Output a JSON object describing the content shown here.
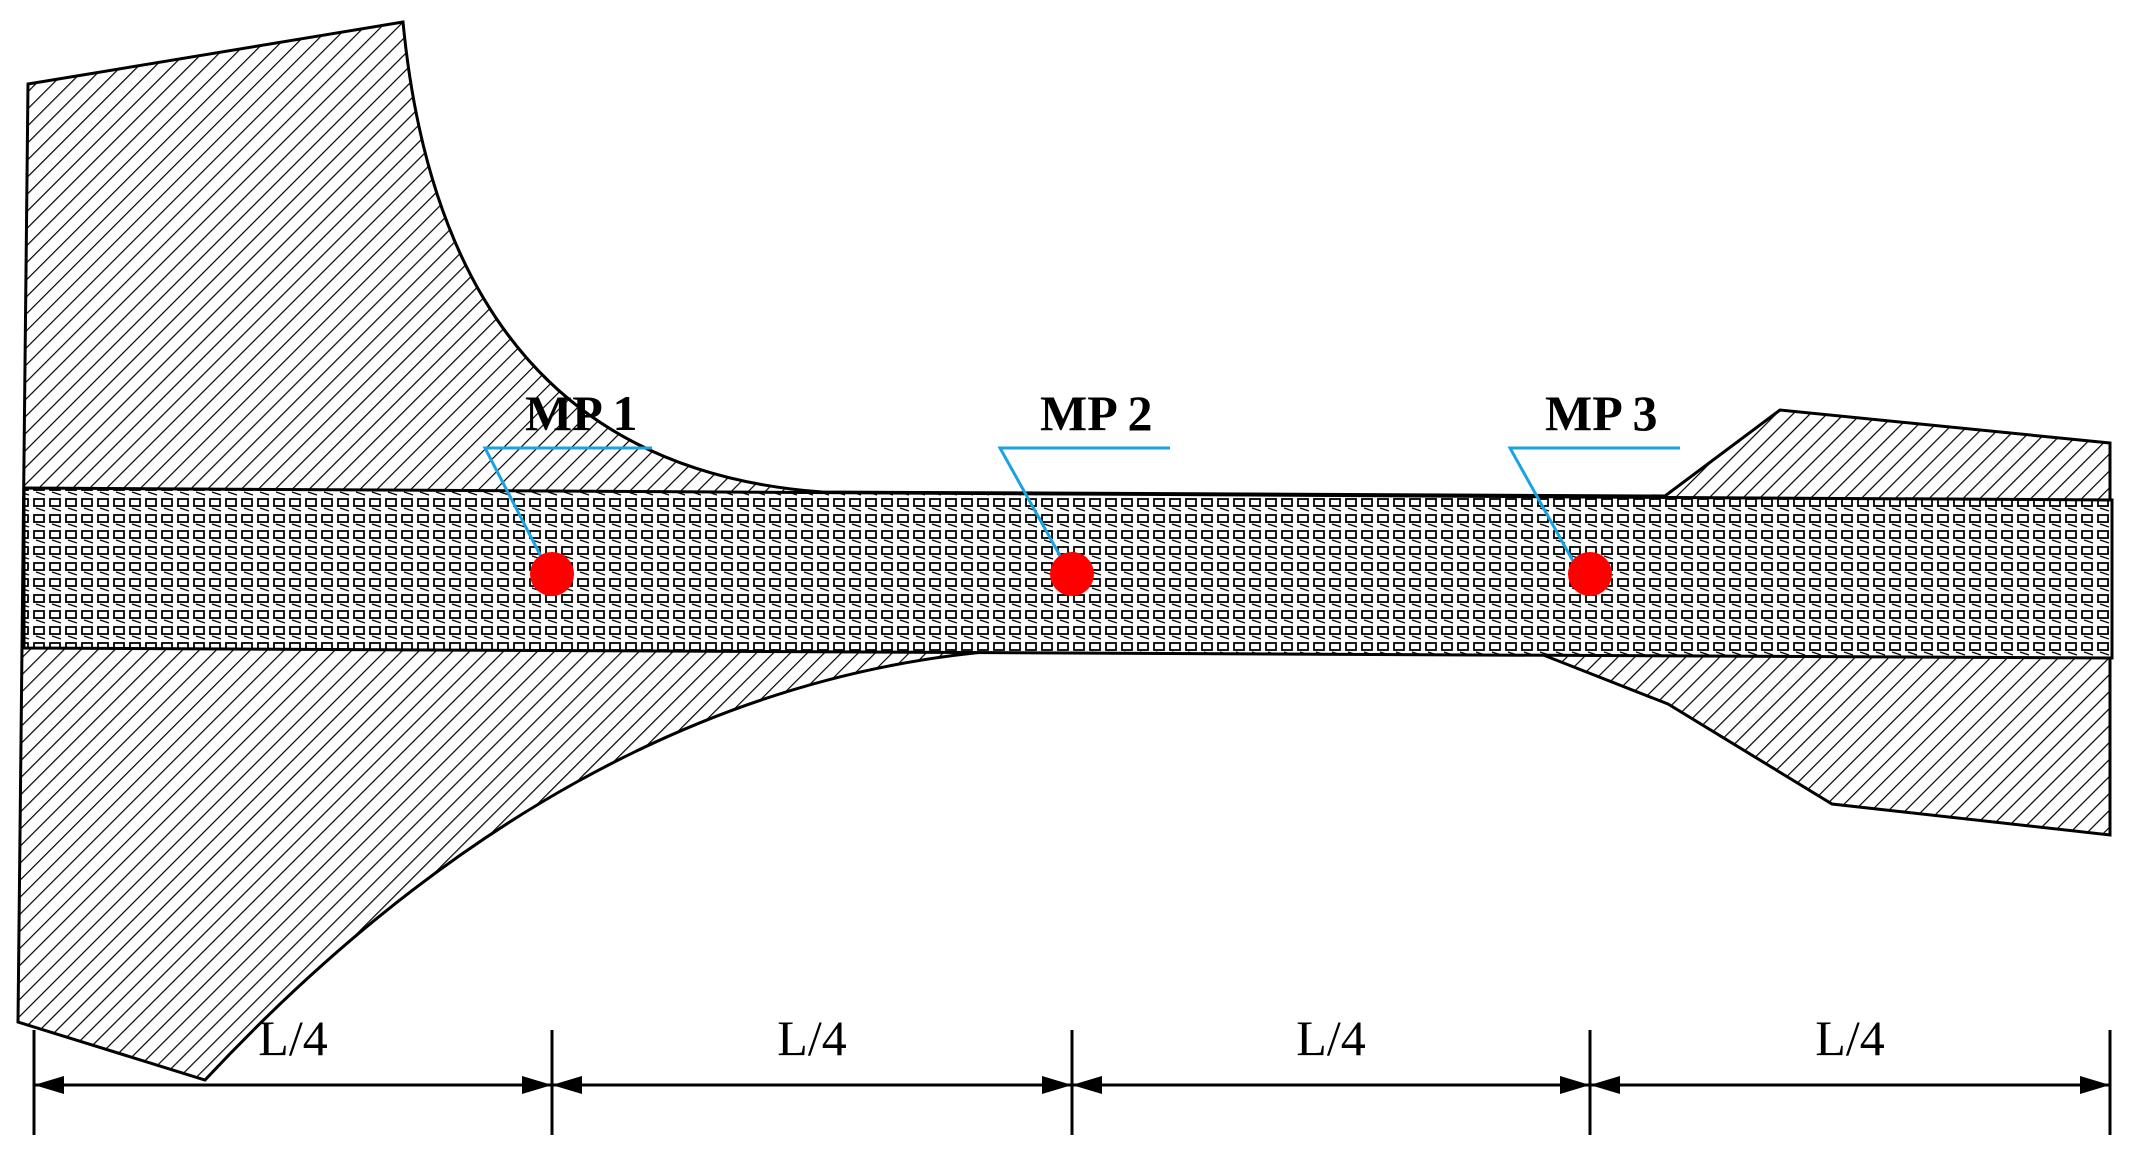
{
  "measurement_points": [
    {
      "label": "MP 1"
    },
    {
      "label": "MP 2"
    },
    {
      "label": "MP 3"
    }
  ],
  "dimensions": [
    {
      "label": "L/4"
    },
    {
      "label": "L/4"
    },
    {
      "label": "L/4"
    },
    {
      "label": "L/4"
    }
  ],
  "colors": {
    "outline": "#000000",
    "hatch": "#000000",
    "leader": "#1aa3e0",
    "point": "#ff0000"
  }
}
